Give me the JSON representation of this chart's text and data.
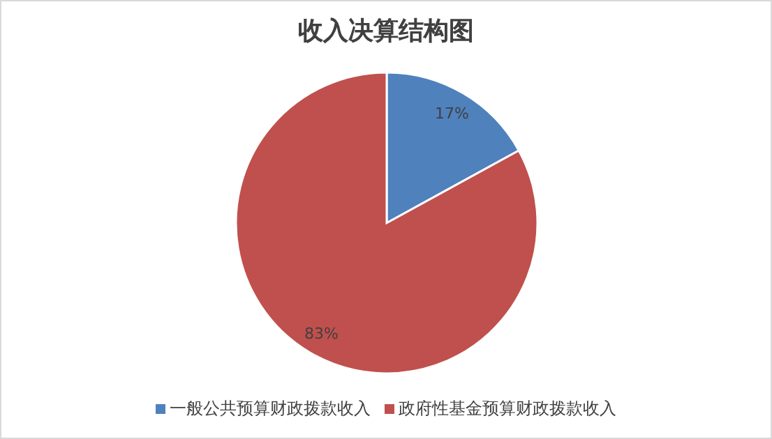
{
  "chart_data": {
    "type": "pie",
    "title": "收入决算结构图",
    "categories": [
      "一般公共预算财政拨款收入",
      "政府性基金预算财政拨款收入"
    ],
    "values": [
      17,
      83
    ],
    "colors": [
      "#4f81bd",
      "#c0504d"
    ],
    "value_labels": [
      "17%",
      "83%"
    ],
    "legend": "bottom"
  }
}
